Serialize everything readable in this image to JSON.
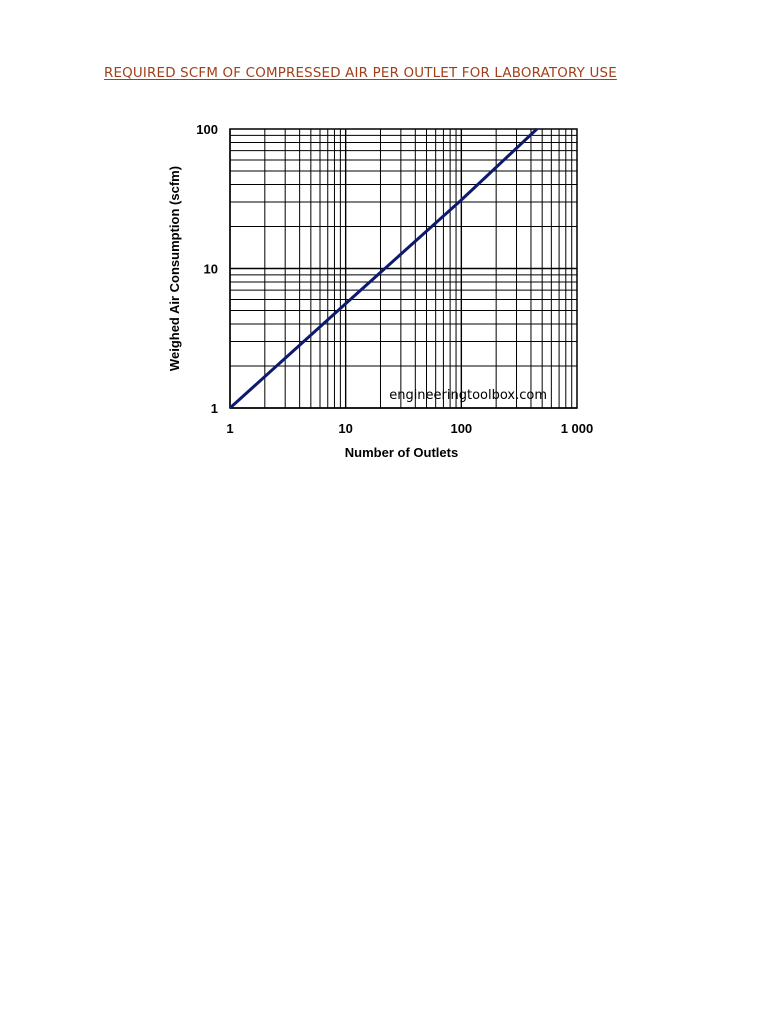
{
  "document": {
    "title": "REQUIRED SCFM OF COMPRESSED AIR PER OUTLET FOR LABORATORY USE",
    "title_color": "#a0401a"
  },
  "chart_data": {
    "type": "line",
    "x_scale": "log",
    "y_scale": "log",
    "xlim": [
      1,
      1000
    ],
    "ylim": [
      1,
      100
    ],
    "xlabel": "Number of Outlets",
    "ylabel": "Weighed Air Consumption (scfm)",
    "x_tick_values": [
      1,
      10,
      100,
      1000
    ],
    "x_tick_labels": [
      "1",
      "10",
      "100",
      "1 000"
    ],
    "y_tick_values": [
      1,
      10,
      100
    ],
    "y_tick_labels": [
      "1",
      "10",
      "100"
    ],
    "grid": true,
    "watermark": "engineeringtoolbox.com",
    "series": [
      {
        "color": "#0c1a6e",
        "x": [
          1,
          10,
          100,
          450
        ],
        "y": [
          1,
          5.6,
          31,
          100
        ]
      }
    ]
  }
}
